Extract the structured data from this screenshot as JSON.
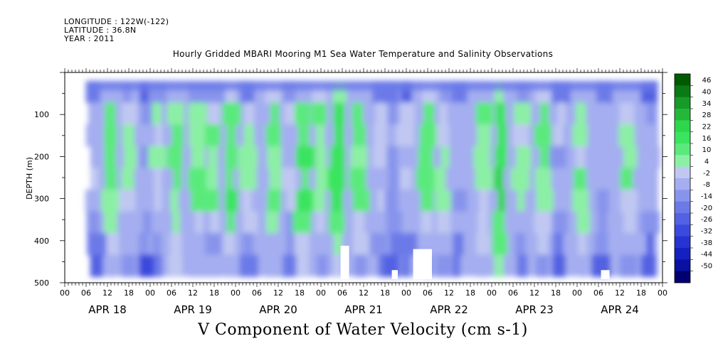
{
  "header": {
    "longitude": "LONGITUDE : 122W(-122)",
    "latitude": "LATITUDE : 36.8N",
    "year": "YEAR : 2011"
  },
  "chart_data": {
    "type": "heatmap",
    "title": "Hourly Gridded MBARI Mooring M1 Sea Water Temperature and Salinity Observations",
    "bottom_title": "V Component of Water Velocity (cm s-1)",
    "ylabel": "DEPTH (m)",
    "ylim": [
      500,
      0
    ],
    "y_ticks": [
      "100",
      "200",
      "300",
      "400",
      "500"
    ],
    "x_hour_labels": [
      "00",
      "06",
      "12",
      "18",
      "00",
      "06",
      "12",
      "18",
      "00",
      "06",
      "12",
      "18",
      "00",
      "06",
      "12",
      "18",
      "00",
      "06",
      "12",
      "18",
      "00",
      "06",
      "12",
      "18",
      "00",
      "06",
      "12",
      "18",
      "00"
    ],
    "x_day_labels": [
      "APR 18",
      "APR 19",
      "APR 20",
      "APR 21",
      "APR 22",
      "APR 23",
      "APR 24"
    ],
    "colorbar_levels": [
      "46",
      "40",
      "34",
      "28",
      "22",
      "16",
      "10",
      "4",
      "-2",
      "-8",
      "-14",
      "-20",
      "-26",
      "-32",
      "-38",
      "-44",
      "-50"
    ],
    "colorbar_colors": [
      "#005a00",
      "#0a7a14",
      "#189a28",
      "#24b83a",
      "#2ed64c",
      "#3ae45e",
      "#5aea7c",
      "#8cf0a4",
      "#c0c8f2",
      "#a4aef0",
      "#8894ec",
      "#6c7ae8",
      "#5262e2",
      "#3a4adc",
      "#2632d2",
      "#1420c0",
      "#0a10a0",
      "#000070"
    ],
    "data_extent": {
      "day_start": 0.3,
      "day_end": 6.95,
      "depth_top": 20,
      "depth_bottom": 485
    },
    "field_stripes": [
      {
        "x": 0.35,
        "v": -4
      },
      {
        "x": 0.55,
        "v": 10
      },
      {
        "x": 0.75,
        "v": 4
      },
      {
        "x": 0.95,
        "v": -6
      },
      {
        "x": 1.1,
        "v": 2
      },
      {
        "x": 1.3,
        "v": 12
      },
      {
        "x": 1.55,
        "v": 8
      },
      {
        "x": 1.75,
        "v": 6
      },
      {
        "x": 1.95,
        "v": 14
      },
      {
        "x": 2.15,
        "v": 4
      },
      {
        "x": 2.45,
        "v": 10
      },
      {
        "x": 2.65,
        "v": -2
      },
      {
        "x": 2.8,
        "v": 16
      },
      {
        "x": 3.0,
        "v": 8
      },
      {
        "x": 3.2,
        "v": 18
      },
      {
        "x": 3.45,
        "v": 10
      },
      {
        "x": 3.7,
        "v": 2
      },
      {
        "x": 3.85,
        "v": -8
      },
      {
        "x": 4.0,
        "v": -4
      },
      {
        "x": 4.25,
        "v": 12
      },
      {
        "x": 4.45,
        "v": 4
      },
      {
        "x": 4.6,
        "v": -6
      },
      {
        "x": 4.9,
        "v": 8
      },
      {
        "x": 5.1,
        "v": 22
      },
      {
        "x": 5.35,
        "v": 2
      },
      {
        "x": 5.6,
        "v": 10
      },
      {
        "x": 5.8,
        "v": -6
      },
      {
        "x": 6.05,
        "v": 8
      },
      {
        "x": 6.3,
        "v": -4
      },
      {
        "x": 6.6,
        "v": 6
      },
      {
        "x": 6.85,
        "v": -8
      }
    ],
    "gaps": [
      {
        "day_start": 3.23,
        "day_end": 3.33,
        "depth_start": 412,
        "depth_end": 485
      },
      {
        "day_start": 3.83,
        "day_end": 3.9,
        "depth_start": 470,
        "depth_end": 485
      },
      {
        "day_start": 4.08,
        "day_end": 4.3,
        "depth_start": 420,
        "depth_end": 485
      },
      {
        "day_start": 6.28,
        "day_end": 6.38,
        "depth_start": 470,
        "depth_end": 485
      }
    ]
  }
}
